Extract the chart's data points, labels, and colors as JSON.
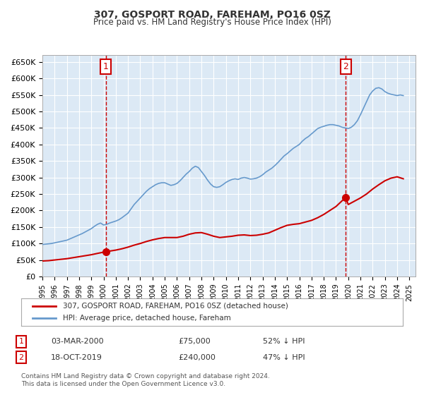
{
  "title": "307, GOSPORT ROAD, FAREHAM, PO16 0SZ",
  "subtitle": "Price paid vs. HM Land Registry's House Price Index (HPI)",
  "background_color": "#ffffff",
  "plot_bg_color": "#dce9f5",
  "grid_color": "#ffffff",
  "ylabel": "",
  "ylim": [
    0,
    670000
  ],
  "yticks": [
    0,
    50000,
    100000,
    150000,
    200000,
    250000,
    300000,
    350000,
    400000,
    450000,
    500000,
    550000,
    600000,
    650000
  ],
  "xlim_start": 1995.0,
  "xlim_end": 2025.5,
  "xtick_labels": [
    "1995",
    "1996",
    "1997",
    "1998",
    "1999",
    "2000",
    "2001",
    "2002",
    "2003",
    "2004",
    "2005",
    "2006",
    "2007",
    "2008",
    "2009",
    "2010",
    "2011",
    "2012",
    "2013",
    "2014",
    "2015",
    "2016",
    "2017",
    "2018",
    "2019",
    "2020",
    "2021",
    "2022",
    "2023",
    "2024",
    "2025"
  ],
  "red_line_color": "#cc0000",
  "blue_line_color": "#6699cc",
  "marker_color": "#cc0000",
  "vline_color": "#cc0000",
  "annotation_box_color": "#cc0000",
  "legend_label_red": "307, GOSPORT ROAD, FAREHAM, PO16 0SZ (detached house)",
  "legend_label_blue": "HPI: Average price, detached house, Fareham",
  "transaction1_date": "03-MAR-2000",
  "transaction1_price": "£75,000",
  "transaction1_hpi": "52% ↓ HPI",
  "transaction1_x": 2000.17,
  "transaction1_y": 75000,
  "transaction2_date": "18-OCT-2019",
  "transaction2_price": "£240,000",
  "transaction2_hpi": "47% ↓ HPI",
  "transaction2_x": 2019.8,
  "transaction2_y": 240000,
  "vline1_x": 2000.17,
  "vline2_x": 2019.8,
  "footer_text": "Contains HM Land Registry data © Crown copyright and database right 2024.\nThis data is licensed under the Open Government Licence v3.0.",
  "hpi_x": [
    1995.0,
    1995.25,
    1995.5,
    1995.75,
    1996.0,
    1996.25,
    1996.5,
    1996.75,
    1997.0,
    1997.25,
    1997.5,
    1997.75,
    1998.0,
    1998.25,
    1998.5,
    1998.75,
    1999.0,
    1999.25,
    1999.5,
    1999.75,
    2000.0,
    2000.25,
    2000.5,
    2000.75,
    2001.0,
    2001.25,
    2001.5,
    2001.75,
    2002.0,
    2002.25,
    2002.5,
    2002.75,
    2003.0,
    2003.25,
    2003.5,
    2003.75,
    2004.0,
    2004.25,
    2004.5,
    2004.75,
    2005.0,
    2005.25,
    2005.5,
    2005.75,
    2006.0,
    2006.25,
    2006.5,
    2006.75,
    2007.0,
    2007.25,
    2007.5,
    2007.75,
    2008.0,
    2008.25,
    2008.5,
    2008.75,
    2009.0,
    2009.25,
    2009.5,
    2009.75,
    2010.0,
    2010.25,
    2010.5,
    2010.75,
    2011.0,
    2011.25,
    2011.5,
    2011.75,
    2012.0,
    2012.25,
    2012.5,
    2012.75,
    2013.0,
    2013.25,
    2013.5,
    2013.75,
    2014.0,
    2014.25,
    2014.5,
    2014.75,
    2015.0,
    2015.25,
    2015.5,
    2015.75,
    2016.0,
    2016.25,
    2016.5,
    2016.75,
    2017.0,
    2017.25,
    2017.5,
    2017.75,
    2018.0,
    2018.25,
    2018.5,
    2018.75,
    2019.0,
    2019.25,
    2019.5,
    2019.75,
    2020.0,
    2020.25,
    2020.5,
    2020.75,
    2021.0,
    2021.25,
    2021.5,
    2021.75,
    2022.0,
    2022.25,
    2022.5,
    2022.75,
    2023.0,
    2023.25,
    2023.5,
    2023.75,
    2024.0,
    2024.25,
    2024.5
  ],
  "hpi_y": [
    97000,
    98000,
    99000,
    100000,
    102000,
    104000,
    106000,
    108000,
    110000,
    114000,
    118000,
    122000,
    126000,
    130000,
    135000,
    140000,
    145000,
    152000,
    158000,
    162000,
    156000,
    158000,
    162000,
    165000,
    168000,
    172000,
    178000,
    185000,
    192000,
    205000,
    218000,
    228000,
    238000,
    248000,
    258000,
    266000,
    272000,
    278000,
    282000,
    284000,
    284000,
    280000,
    276000,
    278000,
    282000,
    290000,
    300000,
    310000,
    318000,
    328000,
    334000,
    330000,
    318000,
    306000,
    292000,
    280000,
    272000,
    270000,
    272000,
    278000,
    285000,
    290000,
    294000,
    296000,
    294000,
    298000,
    300000,
    298000,
    295000,
    296000,
    298000,
    302000,
    308000,
    316000,
    322000,
    328000,
    336000,
    345000,
    355000,
    365000,
    372000,
    380000,
    388000,
    394000,
    400000,
    410000,
    418000,
    424000,
    432000,
    440000,
    448000,
    452000,
    455000,
    458000,
    460000,
    460000,
    458000,
    456000,
    452000,
    450000,
    448000,
    452000,
    460000,
    472000,
    490000,
    510000,
    530000,
    550000,
    562000,
    570000,
    572000,
    568000,
    560000,
    555000,
    552000,
    550000,
    548000,
    550000,
    548000
  ],
  "red_x": [
    1995.0,
    1995.5,
    1996.0,
    1996.5,
    1997.0,
    1997.5,
    1998.0,
    1998.5,
    1999.0,
    1999.5,
    2000.17,
    2000.5,
    2001.0,
    2001.5,
    2002.0,
    2002.5,
    2003.0,
    2003.5,
    2004.0,
    2004.5,
    2005.0,
    2005.5,
    2006.0,
    2006.5,
    2007.0,
    2007.5,
    2008.0,
    2008.5,
    2009.0,
    2009.5,
    2010.0,
    2010.5,
    2011.0,
    2011.5,
    2012.0,
    2012.5,
    2013.0,
    2013.5,
    2014.0,
    2014.5,
    2015.0,
    2015.5,
    2016.0,
    2016.5,
    2017.0,
    2017.5,
    2018.0,
    2018.5,
    2019.0,
    2019.8,
    2020.0,
    2020.5,
    2021.0,
    2021.5,
    2022.0,
    2022.5,
    2023.0,
    2023.5,
    2024.0,
    2024.5
  ],
  "red_y": [
    47000,
    48000,
    50000,
    52000,
    54000,
    57000,
    60000,
    63000,
    66000,
    70000,
    75000,
    77000,
    80000,
    84000,
    89000,
    95000,
    100000,
    106000,
    111000,
    115000,
    118000,
    118000,
    118000,
    122000,
    128000,
    132000,
    133000,
    128000,
    122000,
    118000,
    120000,
    122000,
    125000,
    126000,
    124000,
    125000,
    128000,
    132000,
    140000,
    148000,
    155000,
    158000,
    160000,
    165000,
    170000,
    178000,
    188000,
    200000,
    212000,
    240000,
    218000,
    228000,
    238000,
    250000,
    265000,
    278000,
    290000,
    298000,
    302000,
    296000
  ]
}
